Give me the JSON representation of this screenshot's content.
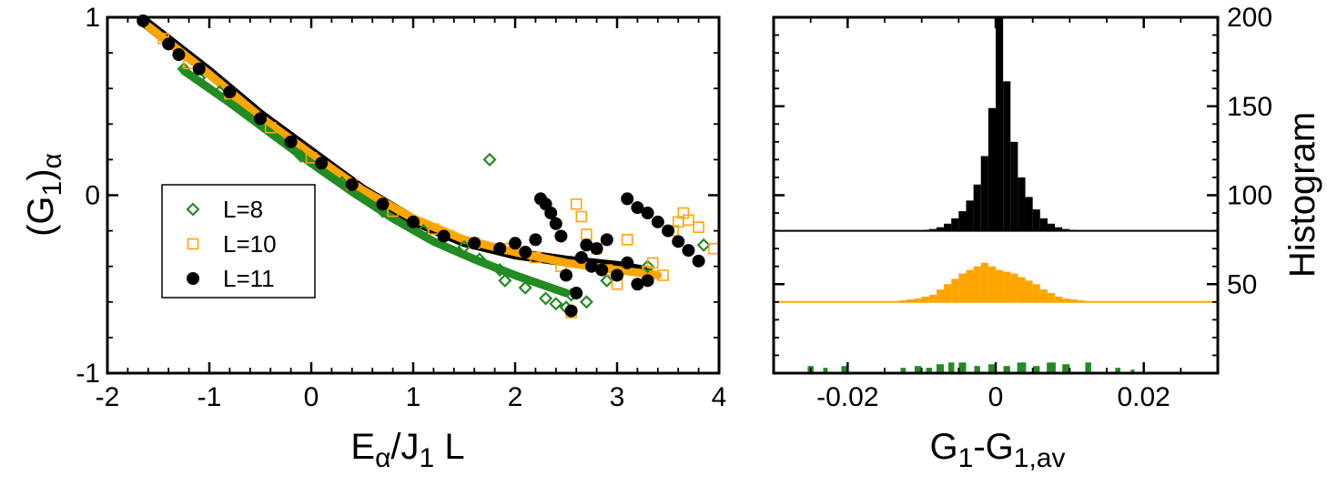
{
  "chart_data": [
    {
      "type": "scatter",
      "xlabel": "E_α/J_1 L",
      "ylabel": "(G_1)_α",
      "xlim": [
        -2,
        4
      ],
      "ylim": [
        -1,
        1
      ],
      "x_ticks": [
        "-2",
        "-1",
        "0",
        "1",
        "2",
        "3",
        "4"
      ],
      "y_ticks": [
        "-1",
        "0",
        "1"
      ],
      "legend": {
        "placement": "center-left",
        "entries": [
          "L=8",
          "L=10",
          "L=11"
        ]
      },
      "series": [
        {
          "name": "L=8",
          "marker": "open-diamond",
          "color": "#228b22",
          "points": [
            [
              -1.25,
              0.71
            ],
            [
              -1.1,
              0.66
            ],
            [
              -0.9,
              0.58
            ],
            [
              -0.5,
              0.42
            ],
            [
              -0.1,
              0.22
            ],
            [
              0.3,
              0.07
            ],
            [
              0.7,
              -0.09
            ],
            [
              1.1,
              -0.2
            ],
            [
              1.5,
              -0.29
            ],
            [
              1.75,
              0.2
            ],
            [
              1.65,
              -0.36
            ],
            [
              1.85,
              -0.42
            ],
            [
              1.9,
              -0.48
            ],
            [
              2.1,
              -0.52
            ],
            [
              2.3,
              -0.58
            ],
            [
              2.4,
              -0.61
            ],
            [
              2.5,
              -0.63
            ],
            [
              2.55,
              -0.56
            ],
            [
              2.7,
              -0.6
            ],
            [
              2.9,
              -0.48
            ],
            [
              3.1,
              -0.38
            ],
            [
              3.3,
              -0.4
            ],
            [
              3.85,
              -0.28
            ]
          ]
        },
        {
          "name": "L=10",
          "marker": "open-square",
          "color": "#ffa500",
          "points": [
            [
              -1.45,
              0.88
            ],
            [
              -1.2,
              0.74
            ],
            [
              -0.8,
              0.57
            ],
            [
              -0.4,
              0.38
            ],
            [
              0.0,
              0.21
            ],
            [
              0.4,
              0.06
            ],
            [
              0.8,
              -0.09
            ],
            [
              1.2,
              -0.19
            ],
            [
              1.6,
              -0.27
            ],
            [
              1.95,
              -0.3
            ],
            [
              2.2,
              -0.35
            ],
            [
              2.45,
              -0.4
            ],
            [
              2.55,
              -0.66
            ],
            [
              2.6,
              -0.05
            ],
            [
              2.65,
              -0.12
            ],
            [
              2.7,
              -0.22
            ],
            [
              2.8,
              -0.3
            ],
            [
              2.9,
              -0.42
            ],
            [
              3.0,
              -0.5
            ],
            [
              3.1,
              -0.25
            ],
            [
              3.3,
              -0.43
            ],
            [
              3.35,
              -0.38
            ],
            [
              3.45,
              -0.45
            ],
            [
              3.55,
              -0.2
            ],
            [
              3.6,
              -0.15
            ],
            [
              3.65,
              -0.1
            ],
            [
              3.7,
              -0.14
            ],
            [
              3.8,
              -0.18
            ],
            [
              3.95,
              -0.3
            ]
          ]
        },
        {
          "name": "L=11",
          "marker": "filled-circle",
          "color": "#000000",
          "points": [
            [
              -1.65,
              0.98
            ],
            [
              -1.4,
              0.85
            ],
            [
              -1.3,
              0.79
            ],
            [
              -1.1,
              0.71
            ],
            [
              -0.8,
              0.58
            ],
            [
              -0.5,
              0.43
            ],
            [
              -0.2,
              0.3
            ],
            [
              0.1,
              0.18
            ],
            [
              0.4,
              0.06
            ],
            [
              0.7,
              -0.05
            ],
            [
              1.0,
              -0.15
            ],
            [
              1.3,
              -0.23
            ],
            [
              1.6,
              -0.27
            ],
            [
              1.85,
              -0.3
            ],
            [
              2.0,
              -0.27
            ],
            [
              2.1,
              -0.32
            ],
            [
              2.2,
              -0.25
            ],
            [
              2.25,
              -0.02
            ],
            [
              2.3,
              -0.05
            ],
            [
              2.35,
              -0.1
            ],
            [
              2.4,
              -0.16
            ],
            [
              2.45,
              -0.23
            ],
            [
              2.5,
              -0.45
            ],
            [
              2.55,
              -0.65
            ],
            [
              2.6,
              -0.55
            ],
            [
              2.65,
              -0.35
            ],
            [
              2.7,
              -0.28
            ],
            [
              2.75,
              -0.4
            ],
            [
              2.8,
              -0.3
            ],
            [
              2.85,
              -0.42
            ],
            [
              2.9,
              -0.25
            ],
            [
              3.0,
              -0.45
            ],
            [
              3.1,
              -0.38
            ],
            [
              3.2,
              -0.5
            ],
            [
              3.3,
              -0.48
            ],
            [
              3.1,
              -0.02
            ],
            [
              3.2,
              -0.07
            ],
            [
              3.3,
              -0.1
            ],
            [
              3.4,
              -0.15
            ],
            [
              3.5,
              -0.2
            ],
            [
              3.6,
              -0.26
            ],
            [
              3.7,
              -0.31
            ],
            [
              3.8,
              -0.37
            ]
          ]
        }
      ],
      "band_fits": [
        {
          "series": "L=11",
          "x": [
            -1.65,
            -1.0,
            -0.5,
            0.0,
            0.5,
            1.0,
            1.5,
            2.0,
            2.5,
            3.0,
            3.3
          ],
          "y": [
            0.98,
            0.69,
            0.45,
            0.24,
            0.03,
            -0.14,
            -0.26,
            -0.33,
            -0.37,
            -0.4,
            -0.43
          ]
        },
        {
          "series": "L=10",
          "x": [
            -1.6,
            -1.0,
            -0.5,
            0.0,
            0.5,
            1.0,
            1.5,
            2.0,
            2.5,
            3.0,
            3.4
          ],
          "y": [
            0.95,
            0.68,
            0.44,
            0.23,
            0.03,
            -0.13,
            -0.25,
            -0.32,
            -0.38,
            -0.42,
            -0.45
          ]
        },
        {
          "series": "L=8",
          "x": [
            -1.25,
            -0.8,
            -0.4,
            0.0,
            0.4,
            0.8,
            1.2,
            1.6,
            2.0,
            2.5
          ],
          "y": [
            0.7,
            0.52,
            0.35,
            0.18,
            0.02,
            -0.13,
            -0.26,
            -0.36,
            -0.45,
            -0.55
          ]
        }
      ]
    },
    {
      "type": "histogram",
      "xlabel": "G_1-G_1,av",
      "ylabel": "Histogram",
      "xlim": [
        -0.03,
        0.03
      ],
      "ylim": [
        0,
        200
      ],
      "x_ticks": [
        "-0.02",
        "0",
        "0.02"
      ],
      "y_ticks": [
        "50",
        "100",
        "150",
        "200"
      ],
      "series": [
        {
          "name": "L=11",
          "color": "#000000",
          "baseline": 80,
          "bin_width": 0.001,
          "centers": [
            -0.0095,
            -0.0085,
            -0.0075,
            -0.0065,
            -0.0055,
            -0.0045,
            -0.0035,
            -0.0025,
            -0.0015,
            -0.0005,
            0.0005,
            0.0015,
            0.0025,
            0.0035,
            0.0045,
            0.0055,
            0.0065,
            0.0075,
            0.0085,
            0.0095,
            0.0105
          ],
          "counts": [
            80.5,
            81,
            82,
            84,
            87,
            91,
            97,
            106,
            122,
            149,
            200,
            164,
            130,
            110,
            99,
            92,
            87,
            84,
            82,
            81,
            80.5
          ]
        },
        {
          "name": "L=10",
          "color": "#ffa500",
          "baseline": 40,
          "bin_width": 0.001,
          "centers": [
            -0.0125,
            -0.0115,
            -0.0105,
            -0.0095,
            -0.0085,
            -0.0075,
            -0.0065,
            -0.0055,
            -0.0045,
            -0.0035,
            -0.0025,
            -0.0015,
            -0.0005,
            0.0005,
            0.0015,
            0.0025,
            0.0035,
            0.0045,
            0.0055,
            0.0065,
            0.0075,
            0.0085,
            0.0095,
            0.0105,
            0.0115
          ],
          "counts": [
            41,
            41.5,
            42,
            43,
            44,
            47,
            50,
            53,
            56,
            58,
            60,
            62,
            60,
            58,
            57,
            56,
            54,
            52,
            50,
            47,
            45,
            43,
            42,
            41.5,
            41
          ]
        },
        {
          "name": "L=8",
          "color": "#228b22",
          "baseline": 0,
          "bars": [
            [
              -0.025,
              0.0008,
              4
            ],
            [
              -0.023,
              0.0006,
              3
            ],
            [
              -0.0205,
              0.0007,
              4
            ],
            [
              -0.0125,
              0.0007,
              3
            ],
            [
              -0.0105,
              0.0009,
              4
            ],
            [
              -0.009,
              0.0008,
              3
            ],
            [
              -0.0075,
              0.001,
              5
            ],
            [
              -0.006,
              0.0008,
              6
            ],
            [
              -0.0045,
              0.001,
              6
            ],
            [
              -0.0025,
              0.0008,
              4
            ],
            [
              -0.0005,
              0.001,
              5
            ],
            [
              0.0015,
              0.0009,
              4
            ],
            [
              0.0035,
              0.0012,
              6
            ],
            [
              0.0055,
              0.0009,
              4
            ],
            [
              0.0075,
              0.0012,
              6
            ],
            [
              0.0095,
              0.001,
              5
            ],
            [
              0.0125,
              0.0008,
              6
            ],
            [
              0.0165,
              0.0007,
              3
            ],
            [
              0.0185,
              0.0005,
              2
            ]
          ]
        }
      ]
    }
  ]
}
